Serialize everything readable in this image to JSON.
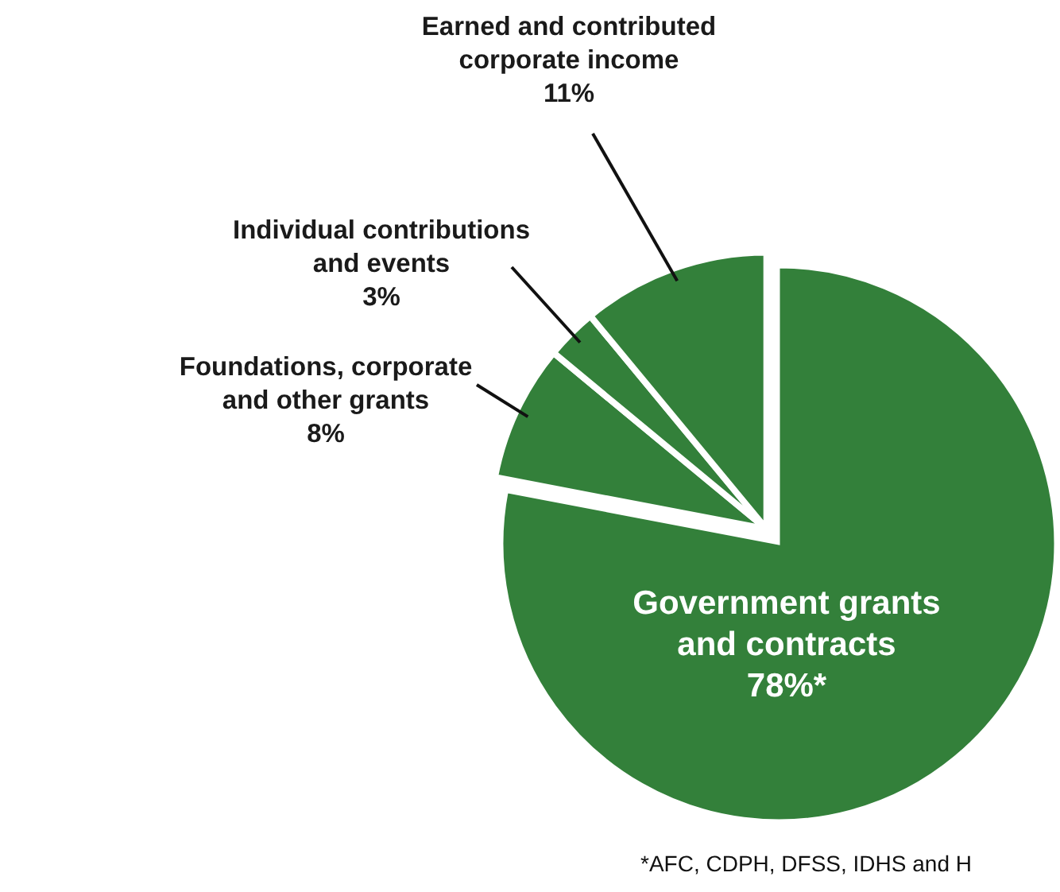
{
  "chart_data": {
    "type": "pie",
    "categories": [
      "Government grants and contracts",
      "Foundations, corporate and other grants",
      "Individual contributions and events",
      "Earned and contributed corporate income"
    ],
    "values": [
      78,
      8,
      3,
      11
    ],
    "value_labels": [
      "78%*",
      "8%",
      "3%",
      "11%"
    ],
    "colors": [
      "#33803a",
      "#33803a",
      "#33803a",
      "#33803a"
    ],
    "annotations": [
      "*AFC, CDPH, DFSS, IDHS and H"
    ],
    "legend": false
  }
}
